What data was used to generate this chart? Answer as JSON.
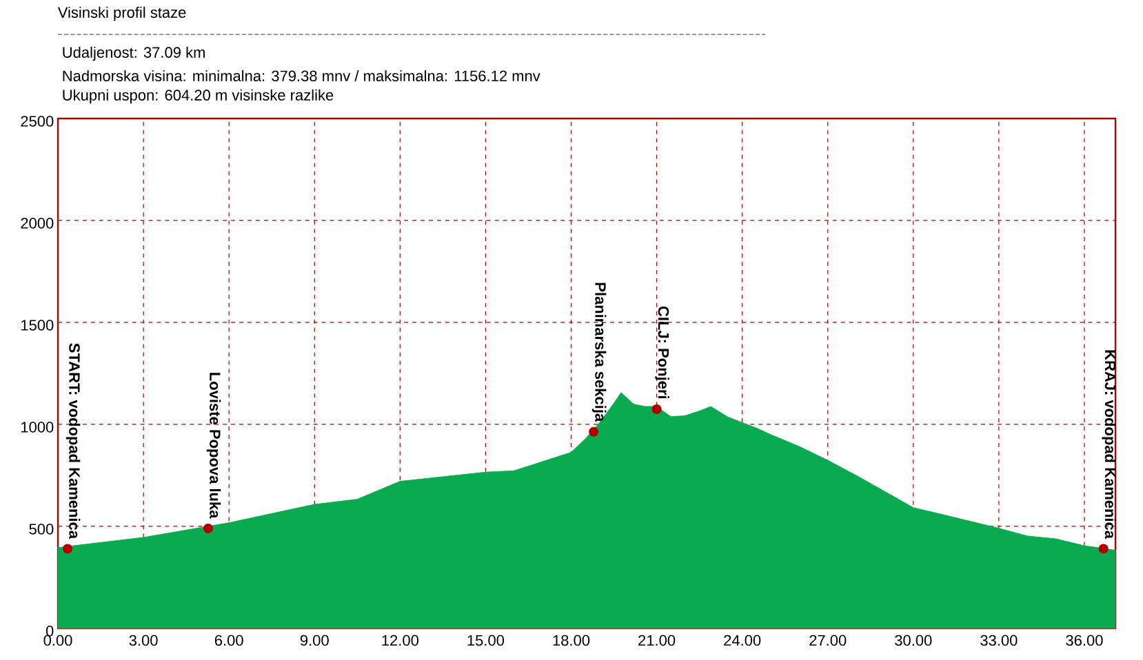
{
  "chart_data": {
    "type": "area",
    "title": "Visinski profil staze",
    "annotations": [
      "Udaljenost: 37.09 km",
      "Nadmorska visina:  minimalna: 379.38 mnv   /  maksimalna: 1156.12 mnv",
      "Ukupni uspon: 604.20 m visinske razlike",
      {
        "text": "START: vodopad Kamenica",
        "x": 0.34,
        "y": 390
      },
      {
        "text": "Loviste Popova luka",
        "x": 5.27,
        "y": 490
      },
      {
        "text": "Planinarska sekcija",
        "x": 18.79,
        "y": 964
      },
      {
        "text": "CILJ: Ponjeri",
        "x": 21.0,
        "y": 1074
      },
      {
        "text": "KRAJ: vodopad Kamenica",
        "x": 36.67,
        "y": 390
      }
    ],
    "series": [
      {
        "color": "#0aab50",
        "x": [
          0,
          3,
          6,
          9,
          10.5,
          12,
          15,
          16,
          17,
          18,
          18.5,
          19,
          19.5,
          19.75,
          20.2,
          20.6,
          21,
          21.5,
          22,
          22.5,
          22.9,
          23.5,
          24,
          24.5,
          25,
          26,
          27,
          28,
          29,
          30,
          31,
          32,
          33,
          34,
          35,
          36,
          37.09
        ],
        "values": [
          396,
          446,
          518,
          608,
          633,
          721,
          766,
          773,
          818,
          863,
          930,
          1009,
          1104,
          1156,
          1099,
          1088,
          1088,
          1038,
          1043,
          1066,
          1088,
          1036,
          1009,
          982,
          950,
          892,
          824,
          750,
          671,
          592,
          559,
          525,
          491,
          453,
          439,
          405,
          383
        ]
      }
    ],
    "xlim": [
      0,
      37.09
    ],
    "ylim": [
      0,
      2500
    ],
    "xticks": [
      {
        "value": 0,
        "label": "0.00"
      },
      {
        "value": 3,
        "label": "3.00"
      },
      {
        "value": 6,
        "label": "6.00"
      },
      {
        "value": 9,
        "label": "9.00"
      },
      {
        "value": 12,
        "label": "12.00"
      },
      {
        "value": 15,
        "label": "15.00"
      },
      {
        "value": 18,
        "label": "18.00"
      },
      {
        "value": 21,
        "label": "21.00"
      },
      {
        "value": 24,
        "label": "24.00"
      },
      {
        "value": 27,
        "label": "27.00"
      },
      {
        "value": 30,
        "label": "30.00"
      },
      {
        "value": 33,
        "label": "33.00"
      },
      {
        "value": 36,
        "label": "36.00"
      }
    ],
    "yticks": [
      0,
      500,
      1000,
      1500,
      2000,
      2500
    ],
    "grid": true,
    "marker": "none"
  }
}
